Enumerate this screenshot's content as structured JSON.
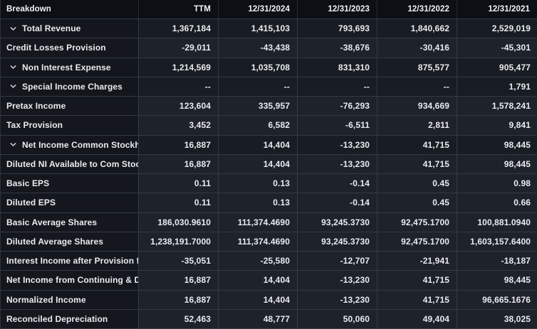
{
  "table": {
    "columns": [
      "Breakdown",
      "TTM",
      "12/31/2024",
      "12/31/2023",
      "12/31/2022",
      "12/31/2021"
    ],
    "rows": [
      {
        "label": "Total Revenue",
        "expandable": true,
        "values": [
          "1,367,184",
          "1,415,103",
          "793,693",
          "1,840,662",
          "2,529,019"
        ]
      },
      {
        "label": "Credit Losses Provision",
        "expandable": false,
        "values": [
          "-29,011",
          "-43,438",
          "-38,676",
          "-30,416",
          "-45,301"
        ]
      },
      {
        "label": "Non Interest Expense",
        "expandable": true,
        "values": [
          "1,214,569",
          "1,035,708",
          "831,310",
          "875,577",
          "905,477"
        ]
      },
      {
        "label": "Special Income Charges",
        "expandable": true,
        "values": [
          "--",
          "--",
          "--",
          "--",
          "1,791"
        ]
      },
      {
        "label": "Pretax Income",
        "expandable": false,
        "values": [
          "123,604",
          "335,957",
          "-76,293",
          "934,669",
          "1,578,241"
        ]
      },
      {
        "label": "Tax Provision",
        "expandable": false,
        "values": [
          "3,452",
          "6,582",
          "-6,511",
          "2,811",
          "9,841"
        ]
      },
      {
        "label": "Net Income Common Stockh...",
        "expandable": true,
        "values": [
          "16,887",
          "14,404",
          "-13,230",
          "41,715",
          "98,445"
        ]
      },
      {
        "label": "Diluted NI Available to Com Stoc...",
        "expandable": false,
        "values": [
          "16,887",
          "14,404",
          "-13,230",
          "41,715",
          "98,445"
        ]
      },
      {
        "label": "Basic EPS",
        "expandable": false,
        "values": [
          "0.11",
          "0.13",
          "-0.14",
          "0.45",
          "0.98"
        ]
      },
      {
        "label": "Diluted EPS",
        "expandable": false,
        "values": [
          "0.11",
          "0.13",
          "-0.14",
          "0.45",
          "0.66"
        ]
      },
      {
        "label": "Basic Average Shares",
        "expandable": false,
        "values": [
          "186,030.9610",
          "111,374.4690",
          "93,245.3730",
          "92,475.1700",
          "100,881.0940"
        ]
      },
      {
        "label": "Diluted Average Shares",
        "expandable": false,
        "values": [
          "1,238,191.7000",
          "111,374.4690",
          "93,245.3730",
          "92,475.1700",
          "1,603,157.6400"
        ]
      },
      {
        "label": "Interest Income after Provision f...",
        "expandable": false,
        "values": [
          "-35,051",
          "-25,580",
          "-12,707",
          "-21,941",
          "-18,187"
        ]
      },
      {
        "label": "Net Income from Continuing & D...",
        "expandable": false,
        "values": [
          "16,887",
          "14,404",
          "-13,230",
          "41,715",
          "98,445"
        ]
      },
      {
        "label": "Normalized Income",
        "expandable": false,
        "values": [
          "16,887",
          "14,404",
          "-13,230",
          "41,715",
          "96,665.1676"
        ]
      },
      {
        "label": "Reconciled Depreciation",
        "expandable": false,
        "values": [
          "52,463",
          "48,777",
          "50,060",
          "49,404",
          "38,025"
        ]
      }
    ]
  },
  "icons": {
    "chevron_down": "chevron-down-icon"
  },
  "colors": {
    "header_bg": "#0c0f14",
    "label_col_bg": "#14181e",
    "value_col_bg": "#1e222a",
    "parent_row_bg": "#181c23",
    "grid_line": "#343a43",
    "text": "#e9ebee"
  }
}
